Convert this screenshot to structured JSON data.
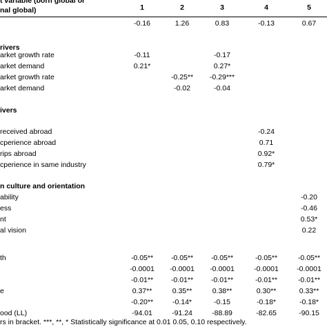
{
  "header": {
    "line1": "t variable (born global or",
    "line2": "nal global)",
    "columns": [
      "1",
      "2",
      "3",
      "4",
      "5"
    ]
  },
  "rows": [
    {
      "label": "",
      "values": [
        "-0.16",
        "1.26",
        "0.83",
        "-0.13",
        "0.67"
      ]
    },
    {
      "label": "rivers",
      "bold": true,
      "values": [
        "",
        "",
        "",
        "",
        ""
      ]
    },
    {
      "label": "arket growth rate",
      "values": [
        "-0.11",
        "",
        "-0.17",
        "",
        ""
      ]
    },
    {
      "label": "arket demand",
      "values": [
        "0.21*",
        "",
        "0.27*",
        "",
        ""
      ]
    },
    {
      "label": "arket growth rate",
      "values": [
        "",
        "-0.25**",
        "-0.29***",
        "",
        ""
      ]
    },
    {
      "label": "arket demand",
      "values": [
        "",
        "-0.02",
        "-0.04",
        "",
        ""
      ]
    },
    {
      "label": "ivers",
      "bold": true,
      "values": [
        "",
        "",
        "",
        "",
        ""
      ]
    },
    {
      "label": "received abroad",
      "values": [
        "",
        "",
        "",
        "-0.24",
        ""
      ]
    },
    {
      "label": "cperience abroad",
      "values": [
        "",
        "",
        "",
        "0.71",
        ""
      ]
    },
    {
      "label": "rips abroad",
      "values": [
        "",
        "",
        "",
        "0.92*",
        ""
      ]
    },
    {
      "label": "cperience in same industry",
      "values": [
        "",
        "",
        "",
        "0.79*",
        ""
      ]
    },
    {
      "label": "n culture and orientation",
      "bold": true,
      "values": [
        "",
        "",
        "",
        "",
        ""
      ]
    },
    {
      "label": "ability",
      "values": [
        "",
        "",
        "",
        "",
        "-0.20"
      ]
    },
    {
      "label": "ess",
      "values": [
        "",
        "",
        "",
        "",
        "-0.46"
      ]
    },
    {
      "label": "nt",
      "values": [
        "",
        "",
        "",
        "",
        "0.53*"
      ]
    },
    {
      "label": "al vision",
      "values": [
        "",
        "",
        "",
        "",
        "0.22"
      ]
    },
    {
      "label": "th",
      "values": [
        "-0.05**",
        "-0.05**",
        "-0.05**",
        "-0.05**",
        "-0.05**"
      ]
    },
    {
      "label": "",
      "values": [
        "-0.0001",
        "-0.0001",
        "-0.0001",
        "-0.0001",
        "-0.0001"
      ]
    },
    {
      "label": "",
      "values": [
        "-0.01**",
        "-0.01**",
        "-0.01**",
        "-0.01**",
        "-0.01**"
      ]
    },
    {
      "label": "e",
      "values": [
        "0.37**",
        "0.35**",
        "0.38**",
        "0.30**",
        "0.33**"
      ]
    },
    {
      "label": "",
      "values": [
        "-0.20**",
        "-0.14*",
        "-0.15",
        "-0.18*",
        "-0.18*"
      ]
    },
    {
      "label": "ood (LL)",
      "values": [
        "-94.01",
        "-91.24",
        "-88.89",
        "-82.65",
        "-90.15"
      ]
    }
  ],
  "footnote": "rs in bracket. ***, **, * Statistically significance at 0.01 0.05, 0.10 respectively."
}
